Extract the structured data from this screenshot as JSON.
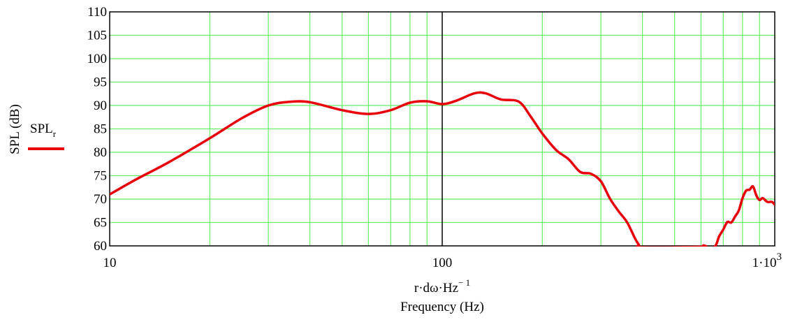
{
  "chart_data": {
    "type": "line",
    "title": "",
    "xscale": "log",
    "xlim": [
      10,
      1000
    ],
    "ylim": [
      60,
      110
    ],
    "xticks": [
      {
        "value": 10,
        "label": "10"
      },
      {
        "value": 100,
        "label": "100"
      },
      {
        "value": 1000,
        "label": "1·10",
        "superscript": "3"
      }
    ],
    "yticks": [
      60,
      65,
      70,
      75,
      80,
      85,
      90,
      95,
      100,
      105,
      110
    ],
    "xlabel_expression": {
      "base": "r·dω·Hz",
      "superscript": "− 1"
    },
    "xlabel": "Frequency (Hz)",
    "ylabel": "SPL (dB)",
    "grid": true,
    "legend_position": "left",
    "colors": {
      "grid": "#66ee66",
      "series": "#e8000b",
      "axis": "#000000",
      "decade_line": "#000000"
    },
    "series": [
      {
        "name": "SPL",
        "name_subscript": "r",
        "x": [
          10,
          12,
          15,
          20,
          25,
          30,
          35,
          40,
          50,
          60,
          70,
          80,
          90,
          100,
          110,
          125,
          135,
          150,
          170,
          185,
          200,
          220,
          240,
          260,
          280,
          300,
          320,
          340,
          360,
          380,
          390,
          400,
          600,
          610,
          620,
          660,
          680,
          700,
          720,
          740,
          760,
          780,
          800,
          820,
          840,
          860,
          880,
          900,
          920,
          950,
          980,
          1000
        ],
        "values": [
          71,
          74.2,
          77.8,
          83,
          87.3,
          90,
          90.8,
          90.7,
          89,
          88.2,
          89,
          90.6,
          90.9,
          90.3,
          91,
          92.6,
          92.6,
          91.3,
          90.8,
          87.5,
          84,
          80.5,
          78.5,
          75.8,
          75.4,
          73.8,
          70,
          67.3,
          65,
          61.6,
          60.3,
          59.7,
          59.8,
          60.1,
          59.7,
          59.8,
          62,
          63.5,
          65.1,
          65,
          66.3,
          67.6,
          70.2,
          71.8,
          72,
          72.7,
          70.8,
          69.8,
          70.2,
          69.4,
          69.4,
          68.8
        ]
      }
    ]
  }
}
